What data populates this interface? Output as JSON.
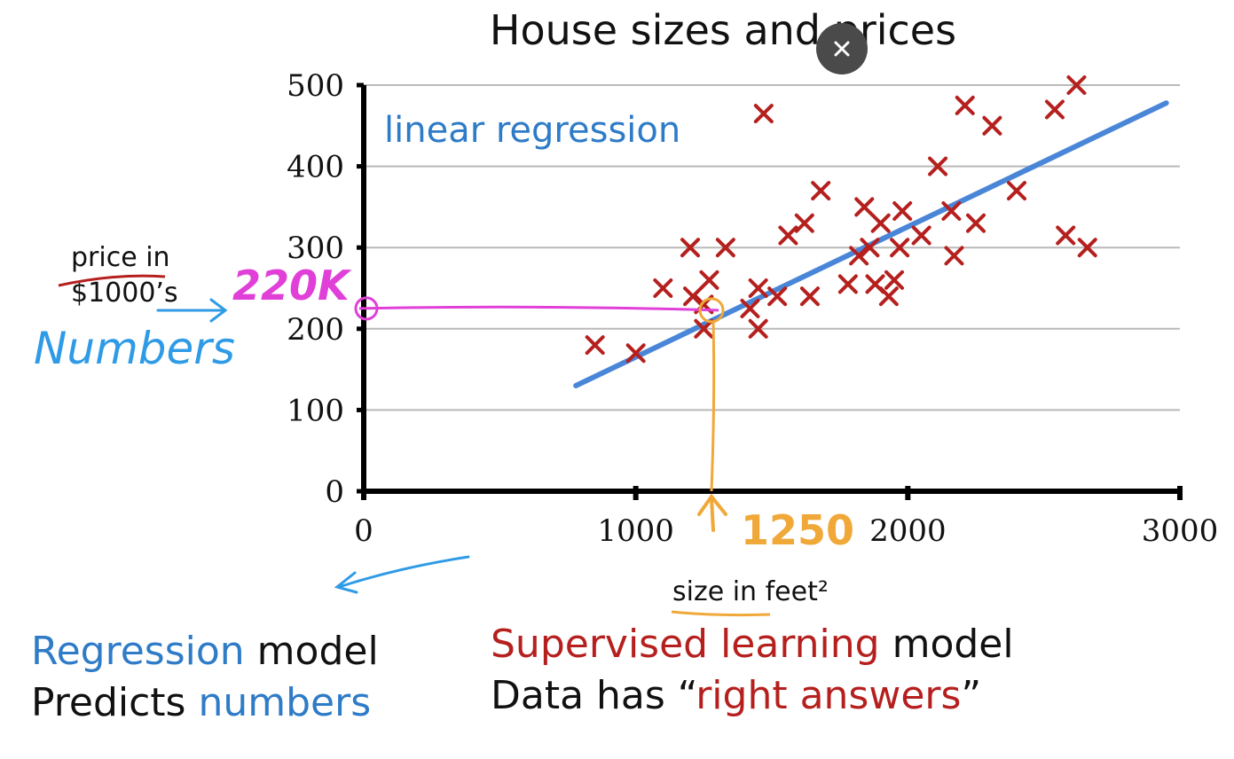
{
  "chart_data": {
    "type": "scatter",
    "title": "House sizes and prices",
    "xlabel": "size in feet²",
    "ylabel": "price in $1000’s",
    "xlim": [
      0,
      3000
    ],
    "ylim": [
      0,
      500
    ],
    "x_ticks": [
      0,
      1000,
      2000,
      3000
    ],
    "y_ticks": [
      0,
      100,
      200,
      300,
      400,
      500
    ],
    "grid": "horizontal",
    "series": [
      {
        "marker": "x",
        "color": "#b5201e",
        "points": [
          [
            850,
            180
          ],
          [
            1000,
            170
          ],
          [
            1100,
            250
          ],
          [
            1200,
            300
          ],
          [
            1210,
            240
          ],
          [
            1250,
            200
          ],
          [
            1250,
            230
          ],
          [
            1270,
            260
          ],
          [
            1330,
            300
          ],
          [
            1420,
            225
          ],
          [
            1450,
            200
          ],
          [
            1450,
            250
          ],
          [
            1470,
            465
          ],
          [
            1520,
            240
          ],
          [
            1560,
            315
          ],
          [
            1620,
            330
          ],
          [
            1640,
            240
          ],
          [
            1680,
            370
          ],
          [
            1780,
            255
          ],
          [
            1820,
            290
          ],
          [
            1840,
            350
          ],
          [
            1860,
            300
          ],
          [
            1880,
            255
          ],
          [
            1900,
            330
          ],
          [
            1930,
            240
          ],
          [
            1950,
            260
          ],
          [
            1970,
            300
          ],
          [
            1980,
            345
          ],
          [
            2050,
            315
          ],
          [
            2110,
            400
          ],
          [
            2160,
            345
          ],
          [
            2170,
            290
          ],
          [
            2210,
            475
          ],
          [
            2250,
            330
          ],
          [
            2310,
            450
          ],
          [
            2400,
            370
          ],
          [
            2540,
            470
          ],
          [
            2580,
            315
          ],
          [
            2620,
            500
          ],
          [
            2660,
            300
          ]
        ]
      }
    ],
    "regression_line": {
      "name": "linear regression",
      "color": "#4a86d8",
      "points": [
        [
          780,
          130
        ],
        [
          2950,
          478
        ]
      ]
    },
    "annotations": {
      "y_readout": {
        "text": "220K",
        "y": 225,
        "color": "#e040d8"
      },
      "x_readout": {
        "text": "1250",
        "x": 1350,
        "color": "#f0a838"
      },
      "numbers_note": {
        "text": "Numbers",
        "color": "#2f9be6"
      }
    }
  },
  "close_button": {
    "icon": "close-icon",
    "color": "#4a4a4a"
  },
  "captions": {
    "left_line1_a": "Regression",
    "left_line1_b": " model",
    "left_line2_a": "Predicts ",
    "left_line2_b": "numbers",
    "right_line1_a": "Supervised learning",
    "right_line1_b": " model",
    "right_line2_a": "Data has “",
    "right_line2_b": "right answers",
    "right_line2_c": "”"
  },
  "colors": {
    "marker": "#b5201e",
    "regression": "#4a86d8",
    "pink": "#e040d8",
    "orange": "#f0a838",
    "blue_ink": "#2f9be6",
    "caption_blue": "#2e7bc7",
    "caption_red": "#b5201e"
  }
}
